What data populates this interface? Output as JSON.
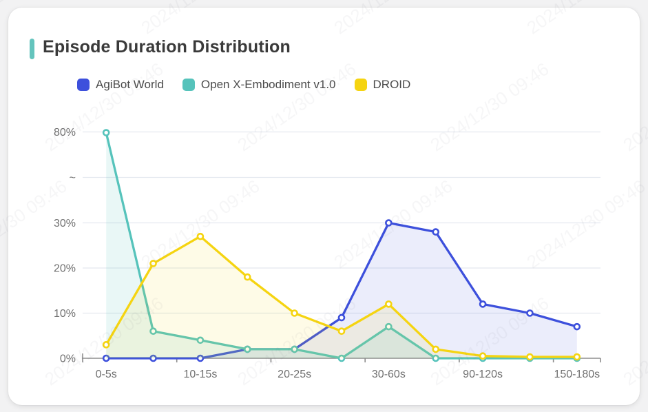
{
  "header": {
    "title": "Episode Duration Distribution",
    "accent_color": "#64C4BD"
  },
  "watermark": {
    "text": "2024/12/30 09:46"
  },
  "chart_data": {
    "type": "line",
    "categories": [
      "0-5s",
      "",
      "10-15s",
      "",
      "20-25s",
      "",
      "30-60s",
      "",
      "90-120s",
      "",
      "150-180s"
    ],
    "series": [
      {
        "name": "AgiBot World",
        "color": "#3D50DC",
        "values": [
          0,
          0,
          0,
          2,
          2,
          9,
          30,
          28,
          12,
          10,
          7
        ]
      },
      {
        "name": "Open X-Embodiment v1.0",
        "color": "#56C3BB",
        "values": [
          79.6,
          6,
          4,
          2,
          2,
          0,
          7,
          0,
          0,
          0,
          0
        ]
      },
      {
        "name": "DROID",
        "color": "#F5D411",
        "values": [
          3,
          21,
          27,
          18,
          10,
          6,
          12,
          2,
          0.5,
          0.3,
          0.3
        ]
      }
    ],
    "y_ticks": [
      "0%",
      "10%",
      "20%",
      "30%",
      "~",
      "80%"
    ],
    "y_axis": {
      "unit": "%",
      "lower_ticks": [
        0,
        10,
        20,
        30
      ],
      "upper_tick": 80,
      "break_between": [
        30,
        80
      ]
    },
    "xlabel": "",
    "ylabel": "",
    "grid": true,
    "area_fill": true,
    "marker": "hollow-circle",
    "legend_position": "top-left",
    "axis_text_color": "#707070",
    "grid_color": "#E4E8EF",
    "axis_line_color": "#8d8d8d"
  }
}
